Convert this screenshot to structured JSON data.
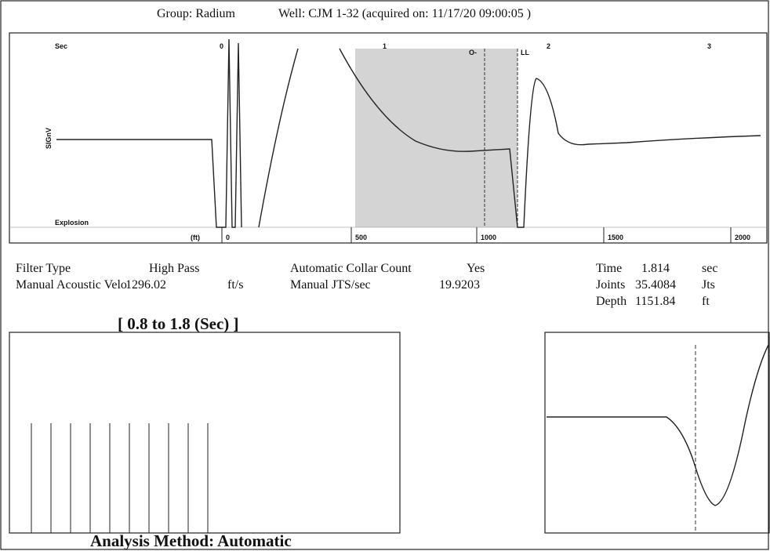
{
  "header": {
    "group": "Group: Radium",
    "well": "Well: CJM 1-32 (acquired on: 11/17/20 09:00:05 )"
  },
  "top_panel": {
    "time_label": "Sec",
    "time_ticks": [
      "0",
      "1",
      "2",
      "3"
    ],
    "markers": [
      "O-",
      "LL"
    ],
    "amplitude_label": "SIGnV",
    "event_label": "Explosion",
    "depth_unit": "(ft)",
    "depth_ticks": [
      "0",
      "500",
      "1000",
      "1500",
      "2000"
    ]
  },
  "info": {
    "filter_type": {
      "label": "Filter Type",
      "value": "High Pass"
    },
    "velocity": {
      "label": "Manual Acoustic Velo",
      "value": "1296.02",
      "unit": "ft/s"
    },
    "collar_count": {
      "label": "Automatic Collar Count",
      "value": "Yes"
    },
    "jts_sec": {
      "label": "Manual JTS/sec",
      "value": "19.9203"
    },
    "time": {
      "label": "Time",
      "value": "1.814",
      "unit": "sec"
    },
    "joints": {
      "label": "Joints",
      "value": "35.4084",
      "unit": "Jts"
    },
    "depth": {
      "label": "Depth",
      "value": "1151.84",
      "unit": "ft"
    }
  },
  "window_title": "[ 0.8  to  1.8 (Sec) ]",
  "analysis": "Analysis Method:   Automatic"
}
